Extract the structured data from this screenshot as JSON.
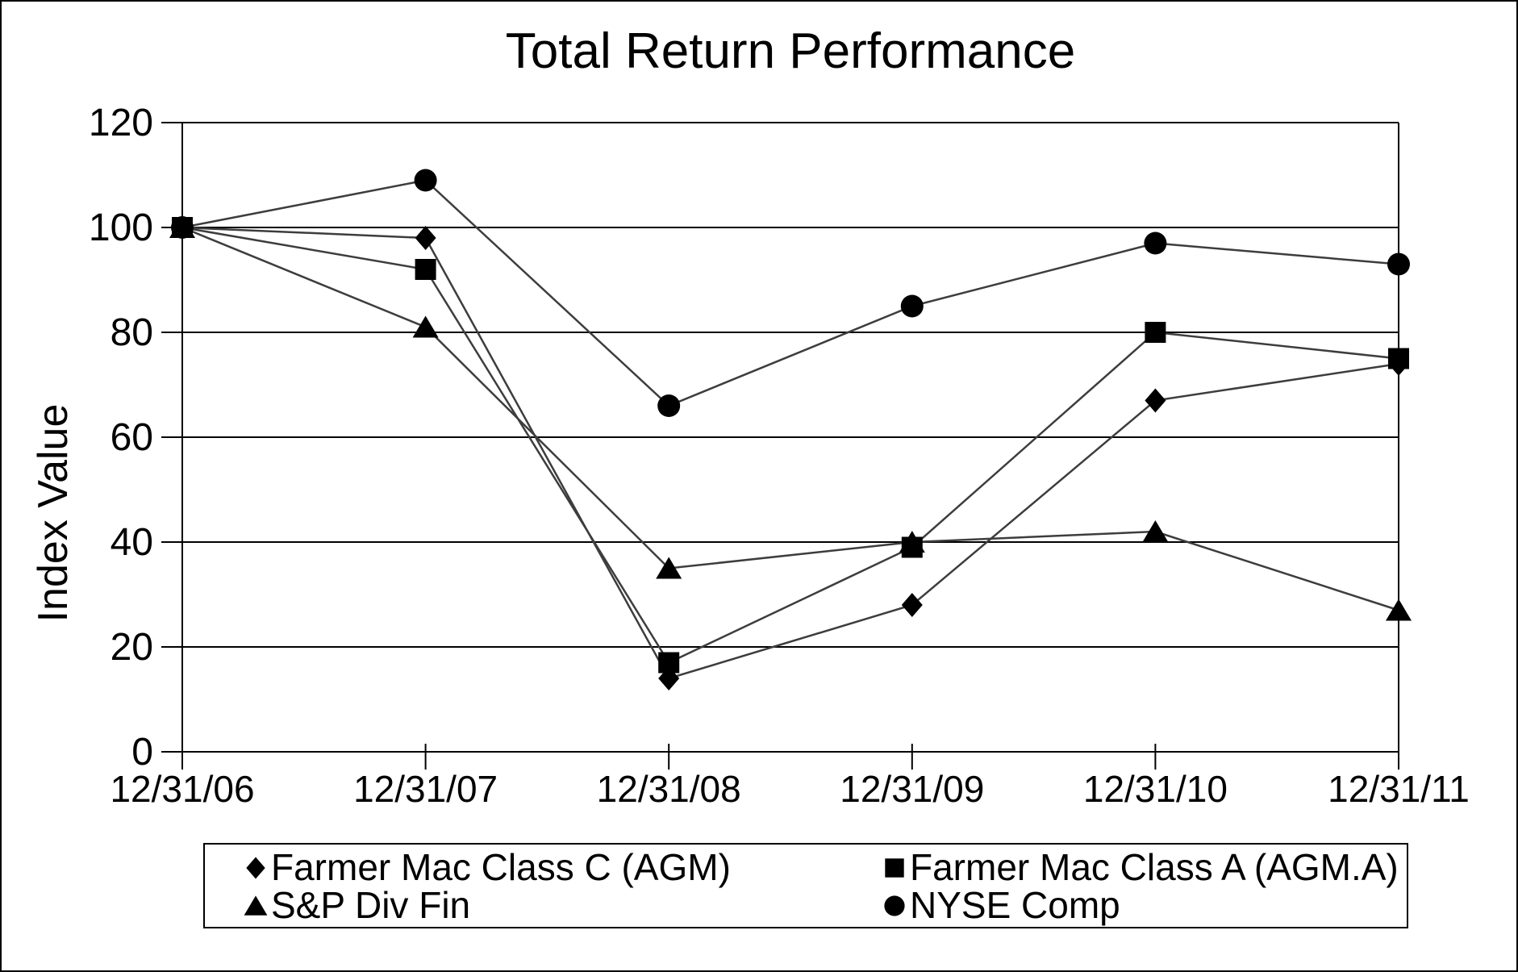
{
  "page": {
    "background": "#ffffff",
    "border_color": "#000000"
  },
  "chart_data": {
    "type": "line",
    "title": "Total Return Performance",
    "ylabel": "Index Value",
    "xlabel": "",
    "categories": [
      "12/31/06",
      "12/31/07",
      "12/31/08",
      "12/31/09",
      "12/31/10",
      "12/31/11"
    ],
    "yticks": [
      0,
      20,
      40,
      60,
      80,
      100,
      120
    ],
    "ylim": [
      0,
      120
    ],
    "grid": "horizontal",
    "legend_position": "bottom",
    "axis_color": "#000000",
    "line_color": "#3d3d3d",
    "marker_color": "#000000",
    "series": [
      {
        "name": "Farmer Mac Class C (AGM)",
        "marker": "diamond",
        "values": [
          100,
          98,
          14,
          28,
          67,
          74
        ]
      },
      {
        "name": "Farmer Mac Class A (AGM.A)",
        "marker": "square",
        "values": [
          100,
          92,
          17,
          39,
          80,
          75
        ]
      },
      {
        "name": "S&P Div Fin",
        "marker": "triangle",
        "values": [
          100,
          81,
          35,
          40,
          42,
          27
        ]
      },
      {
        "name": "NYSE Comp",
        "marker": "circle",
        "values": [
          100,
          109,
          66,
          85,
          97,
          93
        ]
      }
    ]
  }
}
